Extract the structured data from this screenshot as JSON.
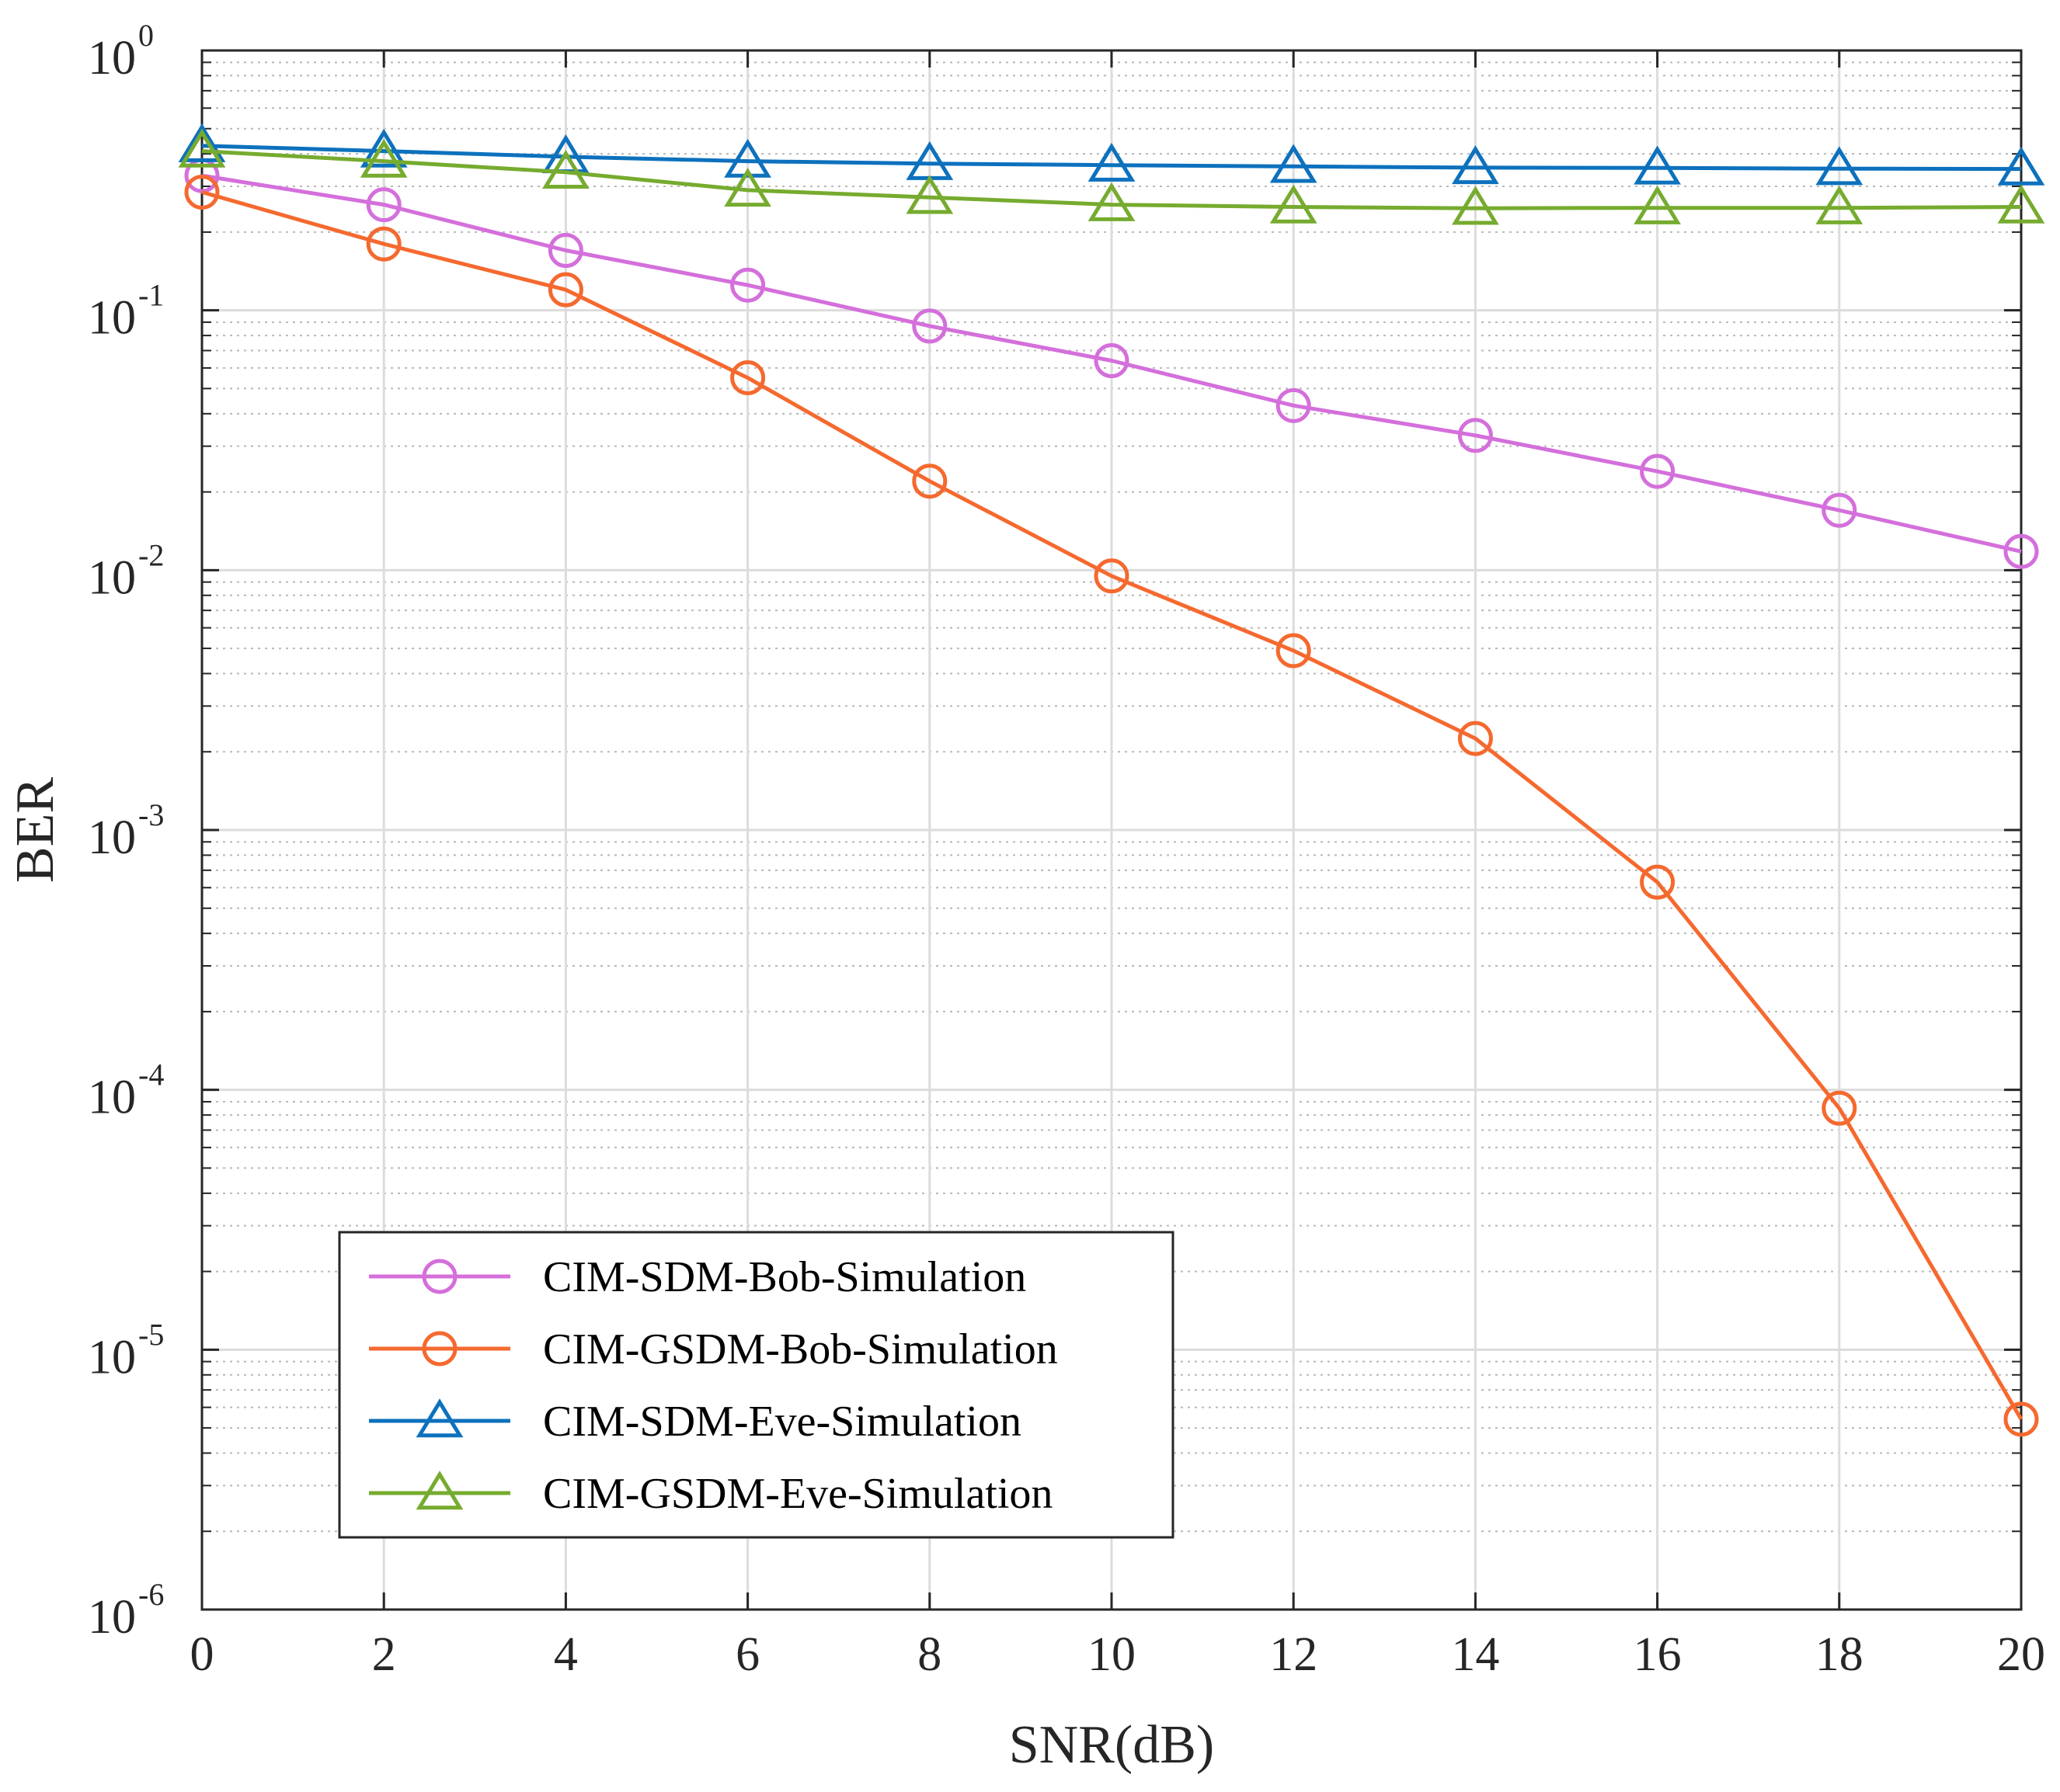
{
  "chart_data": {
    "type": "line",
    "title": "",
    "xlabel": "SNR(dB)",
    "ylabel": "BER",
    "xlim": [
      0,
      20
    ],
    "ylim": [
      1e-06,
      1
    ],
    "yscale": "log",
    "grid": true,
    "legend_position": "bottom-left",
    "x": [
      0,
      2,
      4,
      6,
      8,
      10,
      12,
      14,
      16,
      18,
      20
    ],
    "x_ticks": [
      "0",
      "2",
      "4",
      "6",
      "8",
      "10",
      "12",
      "14",
      "16",
      "18",
      "20"
    ],
    "y_ticks": [
      {
        "base": "10",
        "exp": "0",
        "value": 1
      },
      {
        "base": "10",
        "exp": "-1",
        "value": 0.1
      },
      {
        "base": "10",
        "exp": "-2",
        "value": 0.01
      },
      {
        "base": "10",
        "exp": "-3",
        "value": 0.001
      },
      {
        "base": "10",
        "exp": "-4",
        "value": 0.0001
      },
      {
        "base": "10",
        "exp": "-5",
        "value": 1e-05
      },
      {
        "base": "10",
        "exp": "-6",
        "value": 1e-06
      }
    ],
    "series": [
      {
        "name": "CIM-SDM-Bob-Simulation",
        "color": "#D46FDB",
        "marker": "circle",
        "values": [
          0.33,
          0.255,
          0.17,
          0.125,
          0.087,
          0.064,
          0.043,
          0.033,
          0.024,
          0.017,
          0.0118
        ]
      },
      {
        "name": "CIM-GSDM-Bob-Simulation",
        "color": "#F5692F",
        "marker": "circle",
        "values": [
          0.285,
          0.18,
          0.12,
          0.055,
          0.022,
          0.0095,
          0.0049,
          0.00225,
          0.00063,
          8.5e-05,
          5.4e-06
        ]
      },
      {
        "name": "CIM-SDM-Eve-Simulation",
        "color": "#0D71BD",
        "marker": "triangle",
        "values": [
          0.43,
          0.41,
          0.39,
          0.375,
          0.367,
          0.362,
          0.358,
          0.354,
          0.353,
          0.351,
          0.35
        ]
      },
      {
        "name": "CIM-GSDM-Eve-Simulation",
        "color": "#76AB2F",
        "marker": "triangle",
        "values": [
          0.41,
          0.375,
          0.34,
          0.29,
          0.272,
          0.255,
          0.25,
          0.247,
          0.248,
          0.248,
          0.25
        ]
      }
    ]
  }
}
